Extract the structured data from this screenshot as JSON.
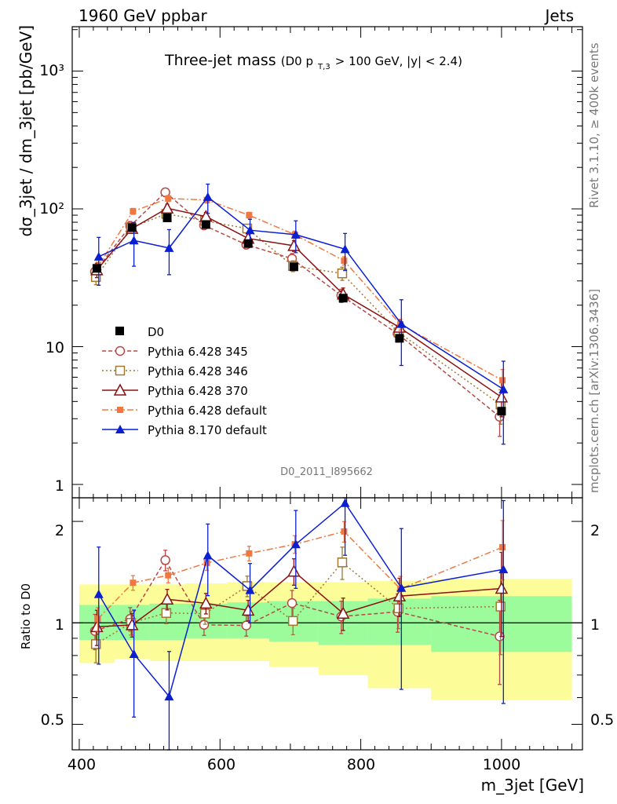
{
  "header": {
    "left": "1960 GeV ppbar",
    "right": "Jets",
    "side_top": "Rivet 3.1.10, ≥ 400k events",
    "side_bottom": "mcplots.cern.ch [arXiv:1306.3436]",
    "analysis_id": "D0_2011_I895662"
  },
  "chart_data": {
    "type": "line",
    "title_main": "Three-jet mass",
    "title_sub_prefix": "(D0 p",
    "title_sub_sub": "T,3",
    "title_sub_suffix": " > 100 GeV, |y| < 2.4)",
    "xlabel": "m_3jet [GeV]",
    "ylabel": "dσ_3jet / dm_3jet [pb/GeV]",
    "ratio_ylabel": "Ratio to D0",
    "xlim": [
      390,
      1115
    ],
    "ylim": [
      0.8,
      2100
    ],
    "yscale": "log",
    "ratio_ylim": [
      0.42,
      2.35
    ],
    "ratio_yscale": "log",
    "x_ticks": [
      "400",
      "600",
      "800",
      "1000"
    ],
    "y_ticks": [
      "1",
      "10",
      "10²",
      "10³"
    ],
    "ratio_ticks": [
      "0.5",
      "1",
      "2"
    ],
    "legend_position": "lower-left",
    "bins": [
      [
        400,
        450
      ],
      [
        450,
        500
      ],
      [
        500,
        550
      ],
      [
        550,
        610
      ],
      [
        610,
        670
      ],
      [
        670,
        740
      ],
      [
        740,
        810
      ],
      [
        810,
        900
      ],
      [
        900,
        1100
      ]
    ],
    "x": [
      425,
      475,
      525,
      580,
      640,
      705,
      775,
      855,
      1000
    ],
    "data": {
      "name": "D0",
      "values": [
        37,
        73,
        86,
        77,
        56,
        38,
        22.5,
        11.5,
        3.4
      ],
      "band_inner_lo": [
        0.89,
        0.89,
        0.89,
        0.9,
        0.9,
        0.88,
        0.86,
        0.86,
        0.82
      ],
      "band_inner_hi": [
        1.13,
        1.13,
        1.14,
        1.14,
        1.15,
        1.16,
        1.16,
        1.18,
        1.2
      ],
      "band_outer_lo": [
        0.76,
        0.78,
        0.77,
        0.77,
        0.77,
        0.74,
        0.7,
        0.64,
        0.59
      ],
      "band_outer_hi": [
        1.3,
        1.3,
        1.3,
        1.31,
        1.32,
        1.32,
        1.32,
        1.33,
        1.35
      ],
      "color": "#000000"
    },
    "series": [
      {
        "name": "Pythia 6.428 345",
        "values": [
          35,
          75,
          132,
          76,
          55,
          43.5,
          23.5,
          12.4,
          3.1
        ],
        "err": [
          0.12,
          0.08,
          0.07,
          0.07,
          0.07,
          0.09,
          0.11,
          0.13,
          0.28
        ],
        "color": "#b84848",
        "dash": "5,3",
        "marker": "circle-open"
      },
      {
        "name": "Pythia 6.428 346",
        "values": [
          32,
          73,
          92,
          82,
          72,
          38.5,
          34,
          12.7,
          3.8
        ],
        "err": [
          0.12,
          0.08,
          0.07,
          0.07,
          0.07,
          0.09,
          0.11,
          0.13,
          0.28
        ],
        "color": "#a07830",
        "dash": "2,3",
        "marker": "square-open"
      },
      {
        "name": "Pythia 6.428 370",
        "values": [
          36,
          72,
          101,
          88,
          61,
          54,
          24,
          13.8,
          4.3
        ],
        "err": [
          0.12,
          0.08,
          0.07,
          0.07,
          0.07,
          0.09,
          0.11,
          0.13,
          0.28
        ],
        "color": "#8b1010",
        "dash": "",
        "marker": "triangle-open"
      },
      {
        "name": "Pythia 6.428 default",
        "values": [
          38,
          96,
          119,
          116,
          90,
          65,
          42,
          14.5,
          5.7
        ],
        "err": [
          0.08,
          0.05,
          0.05,
          0.05,
          0.05,
          0.06,
          0.07,
          0.09,
          0.2
        ],
        "color": "#f07840",
        "dash": "8,3,2,3",
        "marker": "square-filled"
      },
      {
        "name": "Pythia 8.170 default",
        "values": [
          45,
          59,
          52,
          122,
          70,
          65,
          51,
          14.6,
          4.9
        ],
        "err": [
          0.38,
          0.35,
          0.36,
          0.24,
          0.2,
          0.26,
          0.3,
          0.5,
          0.6
        ],
        "color": "#0a1ed2",
        "dash": "",
        "marker": "triangle-filled"
      }
    ]
  }
}
